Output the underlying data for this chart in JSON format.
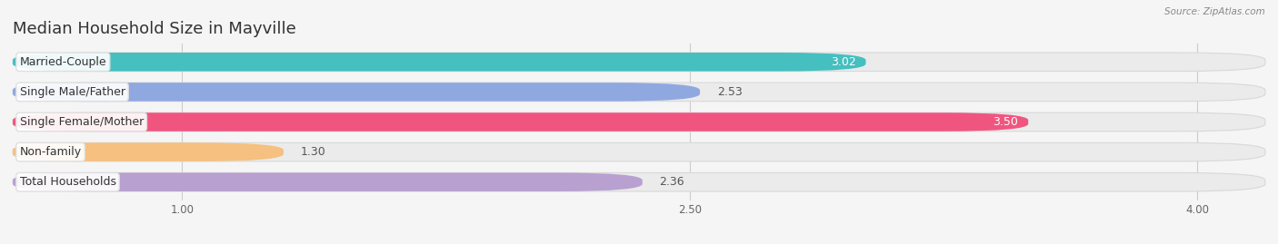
{
  "title": "Median Household Size in Mayville",
  "source": "Source: ZipAtlas.com",
  "categories": [
    "Married-Couple",
    "Single Male/Father",
    "Single Female/Mother",
    "Non-family",
    "Total Households"
  ],
  "values": [
    3.02,
    2.53,
    3.5,
    1.3,
    2.36
  ],
  "bar_colors": [
    "#45bfbf",
    "#90a8e0",
    "#f05580",
    "#f5c080",
    "#b8a0d0"
  ],
  "value_text_colors": [
    "#ffffff",
    "#555555",
    "#ffffff",
    "#555555",
    "#555555"
  ],
  "xlim_data": [
    0.5,
    4.2
  ],
  "x_axis_start": 0.5,
  "xticks": [
    1.0,
    2.5,
    4.0
  ],
  "title_fontsize": 13,
  "label_fontsize": 9,
  "value_fontsize": 9,
  "background_color": "#f5f5f5",
  "bar_bg_color": "#ebebeb"
}
